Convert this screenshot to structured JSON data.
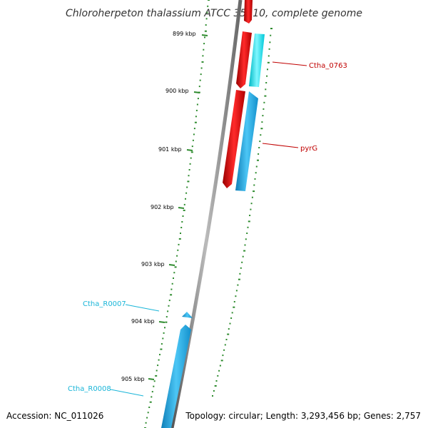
{
  "title": "Chloroherpeton thalassium ATCC 35110, complete genome",
  "footer": {
    "accession": "Accession: NC_011026",
    "summary": "Topology: circular; Length: 3,293,456 bp; Genes: 2,757"
  },
  "ruler_labels": [
    "899 kbp",
    "900 kbp",
    "901 kbp",
    "902 kbp",
    "903 kbp",
    "904 kbp",
    "905 kbp"
  ],
  "gene_labels": {
    "ctha_0763": "Ctha_0763",
    "pyrg": "pyrG",
    "ctha_r0007": "Ctha_R0007",
    "ctha_r0008": "Ctha_R0008"
  },
  "colors": {
    "forward_cds": "#e8000b",
    "reverse_cds": "#1ea7e8",
    "trna": "#00e0e8",
    "ruler": "#2e8b2e",
    "backbone": "#888888",
    "label_red": "#c00000",
    "label_cyan": "#19b5d8"
  }
}
